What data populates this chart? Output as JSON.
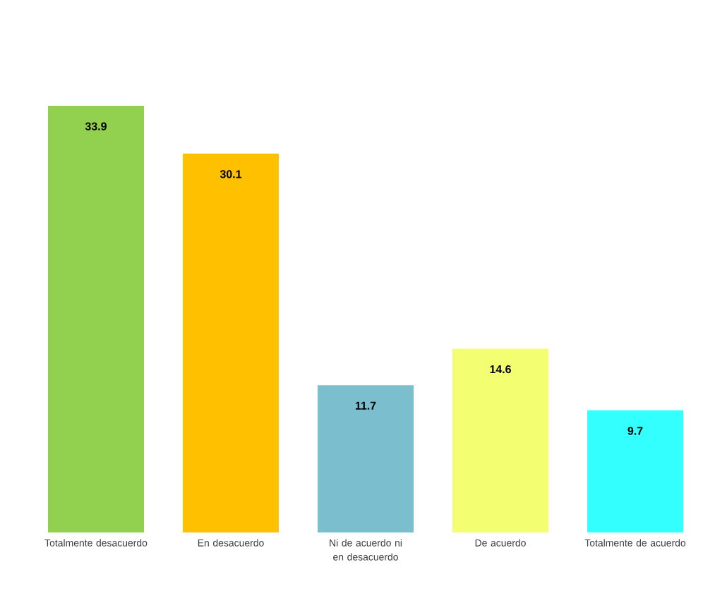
{
  "chart_data": {
    "type": "bar",
    "categories": [
      "Totalmente desacuerdo",
      "En desacuerdo",
      "Ni de acuerdo ni en desacuerdo",
      "De acuerdo",
      "Totalmente de acuerdo"
    ],
    "values": [
      33.9,
      30.1,
      11.7,
      14.6,
      9.7
    ],
    "colors": [
      "#92d050",
      "#ffc000",
      "#7bbfcf",
      "#f3ff70",
      "#33ffff"
    ],
    "data_labels": true
  }
}
